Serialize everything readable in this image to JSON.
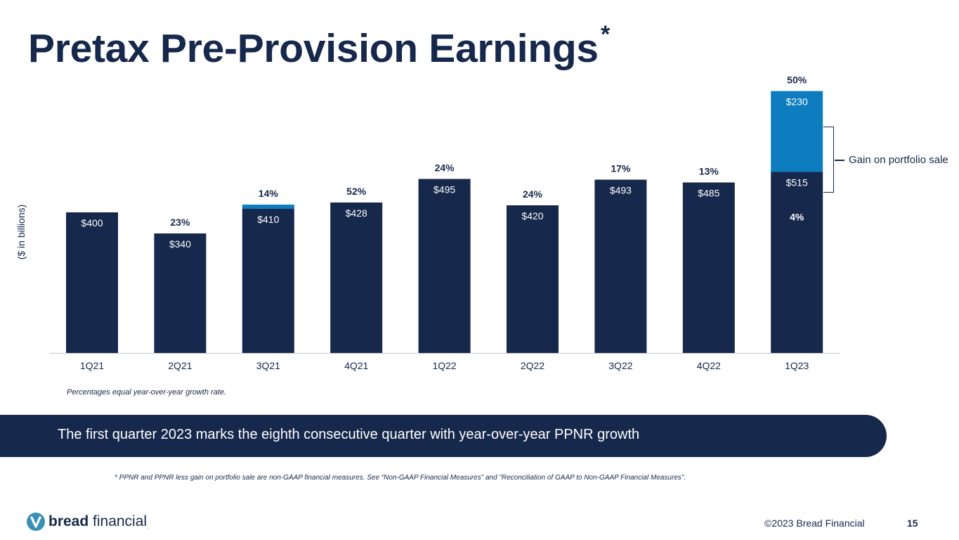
{
  "slide": {
    "title": "Pretax Pre-Provision Earnings",
    "title_marker": "*",
    "page_number": "15",
    "copyright": "©2023 Bread Financial"
  },
  "chart_data": {
    "type": "bar",
    "stacked": true,
    "ylabel": "($  in billions)",
    "categories": [
      "1Q21",
      "2Q21",
      "3Q21",
      "4Q21",
      "1Q22",
      "2Q22",
      "3Q22",
      "4Q22",
      "1Q23"
    ],
    "series": [
      {
        "name": "PPNR less gain on portfolio sale",
        "color": "#16284b",
        "values": [
          400,
          340,
          410,
          428,
          495,
          420,
          493,
          485,
          515
        ],
        "labels": [
          "$400",
          "$340",
          "$410",
          "$428",
          "$495",
          "$420",
          "$493",
          "$485",
          "$515"
        ]
      },
      {
        "name": "Gain on portfolio sale",
        "color": "#0d7dbf",
        "values": [
          0,
          0,
          12,
          0,
          0,
          0,
          0,
          0,
          230
        ],
        "labels": [
          "",
          "",
          "",
          "",
          "",
          "",
          "",
          "",
          "$230"
        ]
      }
    ],
    "growth_labels": [
      "",
      "23%",
      "14%",
      "52%",
      "24%",
      "24%",
      "17%",
      "13%",
      "50%"
    ],
    "inner_growth_label": {
      "category": "1Q23",
      "text": "4%"
    },
    "bracket_label": "Gain on portfolio sale",
    "ylim": [
      0,
      760
    ],
    "grid": false
  },
  "notes": {
    "percentages": "Percentages equal year-over-year growth rate.",
    "banner": "The first quarter 2023 marks the eighth consecutive quarter with year-over-year PPNR growth",
    "gaap": "* PPNR and PPNR less gain on portfolio sale are non-GAAP financial measures. See “Non-GAAP Financial Measures” and \"Reconciliation of GAAP to Non-GAAP Financial Measures\"."
  },
  "logo": {
    "bold": "bread",
    "light": " financial",
    "mark": "."
  },
  "colors": {
    "navy": "#16284b",
    "blue": "#0d7dbf",
    "teal": "#3a8fb7"
  }
}
